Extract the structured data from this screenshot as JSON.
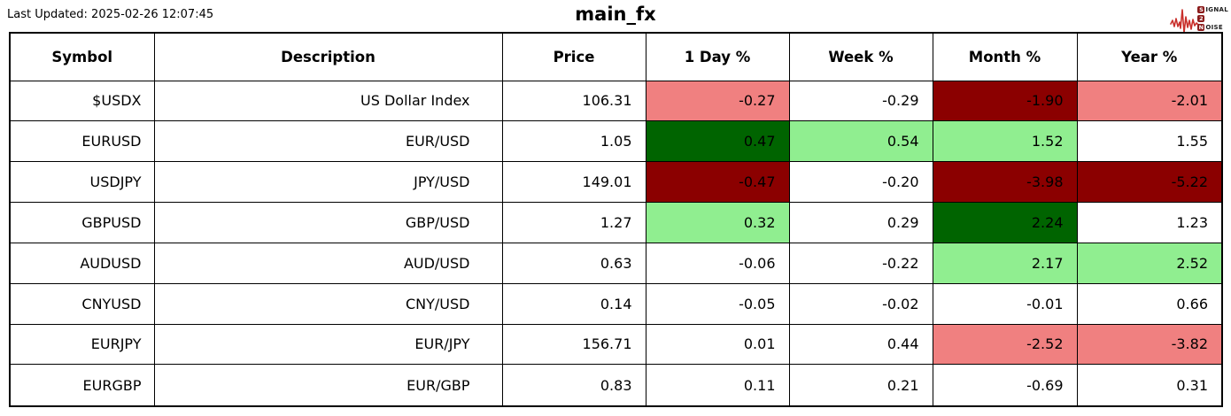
{
  "header": {
    "last_updated": "Last Updated: 2025-02-26 12:07:45",
    "title": "main_fx"
  },
  "brand": {
    "line1_boxed": "S",
    "line1_rest": "IGNAL",
    "line2_boxed": "2",
    "line3_boxed": "N",
    "line3_rest": "OISE",
    "wave_color": "#c9302c",
    "box_color": "#8b1b1b"
  },
  "cell_colors": {
    "neutral": "#FFFFFF",
    "positive": "#90EE90",
    "positive_strong": "#006400",
    "negative": "#F08080",
    "negative_strong": "#8B0000"
  },
  "chart_data": {
    "type": "table",
    "title": "main_fx",
    "columns": [
      "Symbol",
      "Description",
      "Price",
      "1 Day %",
      "Week %",
      "Month %",
      "Year %"
    ],
    "rows": [
      {
        "symbol": "$USDX",
        "description": "US Dollar Index",
        "price": "106.31",
        "pct": [
          {
            "v": "-0.27",
            "c": "negative"
          },
          {
            "v": "-0.29",
            "c": "neutral"
          },
          {
            "v": "-1.90",
            "c": "negative_strong"
          },
          {
            "v": "-2.01",
            "c": "negative"
          }
        ]
      },
      {
        "symbol": "EURUSD",
        "description": "EUR/USD",
        "price": "1.05",
        "pct": [
          {
            "v": "0.47",
            "c": "positive_strong"
          },
          {
            "v": "0.54",
            "c": "positive"
          },
          {
            "v": "1.52",
            "c": "positive"
          },
          {
            "v": "1.55",
            "c": "neutral"
          }
        ]
      },
      {
        "symbol": "USDJPY",
        "description": "JPY/USD",
        "price": "149.01",
        "pct": [
          {
            "v": "-0.47",
            "c": "negative_strong"
          },
          {
            "v": "-0.20",
            "c": "neutral"
          },
          {
            "v": "-3.98",
            "c": "negative_strong"
          },
          {
            "v": "-5.22",
            "c": "negative_strong"
          }
        ]
      },
      {
        "symbol": "GBPUSD",
        "description": "GBP/USD",
        "price": "1.27",
        "pct": [
          {
            "v": "0.32",
            "c": "positive"
          },
          {
            "v": "0.29",
            "c": "neutral"
          },
          {
            "v": "2.24",
            "c": "positive_strong"
          },
          {
            "v": "1.23",
            "c": "neutral"
          }
        ]
      },
      {
        "symbol": "AUDUSD",
        "description": "AUD/USD",
        "price": "0.63",
        "pct": [
          {
            "v": "-0.06",
            "c": "neutral"
          },
          {
            "v": "-0.22",
            "c": "neutral"
          },
          {
            "v": "2.17",
            "c": "positive"
          },
          {
            "v": "2.52",
            "c": "positive"
          }
        ]
      },
      {
        "symbol": "CNYUSD",
        "description": "CNY/USD",
        "price": "0.14",
        "pct": [
          {
            "v": "-0.05",
            "c": "neutral"
          },
          {
            "v": "-0.02",
            "c": "neutral"
          },
          {
            "v": "-0.01",
            "c": "neutral"
          },
          {
            "v": "0.66",
            "c": "neutral"
          }
        ]
      },
      {
        "symbol": "EURJPY",
        "description": "EUR/JPY",
        "price": "156.71",
        "pct": [
          {
            "v": "0.01",
            "c": "neutral"
          },
          {
            "v": "0.44",
            "c": "neutral"
          },
          {
            "v": "-2.52",
            "c": "negative"
          },
          {
            "v": "-3.82",
            "c": "negative"
          }
        ]
      },
      {
        "symbol": "EURGBP",
        "description": "EUR/GBP",
        "price": "0.83",
        "pct": [
          {
            "v": "0.11",
            "c": "neutral"
          },
          {
            "v": "0.21",
            "c": "neutral"
          },
          {
            "v": "-0.69",
            "c": "neutral"
          },
          {
            "v": "0.31",
            "c": "neutral"
          }
        ]
      }
    ]
  }
}
